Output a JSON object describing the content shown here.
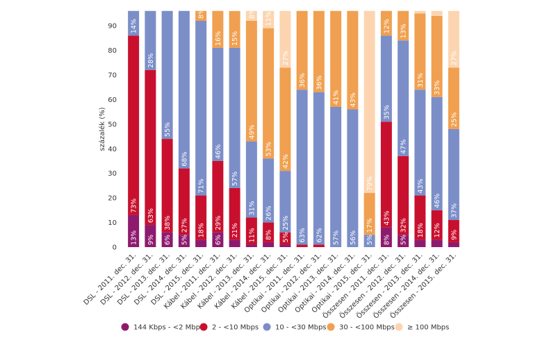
{
  "chart_data": {
    "type": "stacked_bar",
    "y_label": "százalék (%)",
    "categories": [
      "DSL - 2011. dec. 31.",
      "DSL - 2012. dec. 31.",
      "DSL - 2013. dec. 31.",
      "DSL - 2014. dec. 31.",
      "DSL - 2015. dec. 31.",
      "Kábel - 2011. dec. 31.",
      "Kábel - 2012. dec. 31.",
      "Kábel - 2013. dec. 31.",
      "Kábel - 2014. dec. 31.",
      "Kábel - 2015. dec. 31.",
      "Optikai - 2011. dec. 31.",
      "Optikai - 2012. dec. 31.",
      "Optikai - 2013. dec. 31.",
      "Optikai - 2014. dec. 31.",
      "Optikai - 2015. dec. 31.",
      "Összesen - 2011. dec. 31.",
      "Összesen - 2012. dec. 31.",
      "Összesen - 2013. dec. 31.",
      "Összesen - 2014. dec. 31.",
      "Összesen - 2015. dec. 31."
    ],
    "series": [
      {
        "name": "144 Kbps - <2 Mbps",
        "color": "#8e1a6e",
        "values": [
          13,
          9,
          6,
          5,
          3,
          6,
          3,
          1,
          2,
          1,
          0,
          0,
          0,
          0,
          0,
          8,
          5,
          3,
          3,
          2
        ],
        "value_labels": [
          "13%",
          "9%",
          "6%",
          "5%",
          null,
          "6%",
          null,
          null,
          null,
          null,
          null,
          null,
          null,
          null,
          null,
          "8%",
          "5%",
          null,
          null,
          null
        ]
      },
      {
        "name": "2 - <10 Mbps",
        "color": "#c8102e",
        "values": [
          73,
          63,
          38,
          27,
          18,
          29,
          21,
          11,
          8,
          5,
          1,
          1,
          0,
          0,
          0,
          43,
          32,
          18,
          12,
          9
        ],
        "value_labels": [
          "73%",
          "63%",
          "38%",
          "27%",
          "18%",
          "29%",
          "21%",
          "11%",
          "8%",
          "5%",
          null,
          null,
          null,
          null,
          null,
          "43%",
          "32%",
          "18%",
          "12%",
          "9%"
        ]
      },
      {
        "name": "10 - <30 Mbps",
        "color": "#7b8ec8",
        "values": [
          14,
          28,
          55,
          68,
          71,
          46,
          57,
          31,
          26,
          25,
          63,
          62,
          57,
          56,
          5,
          35,
          47,
          43,
          46,
          37
        ],
        "value_labels": [
          "14%",
          "28%",
          "55%",
          "68%",
          "71%",
          "46%",
          "57%",
          "31%",
          "26%",
          "25%",
          "63%",
          "62%",
          "57%",
          "56%",
          "5%",
          "35%",
          "47%",
          "43%",
          "46%",
          "37%"
        ]
      },
      {
        "name": "30 - <100 Mbps",
        "color": "#f0a050",
        "values": [
          0,
          0,
          0,
          0,
          8,
          16,
          15,
          49,
          53,
          42,
          36,
          36,
          41,
          43,
          17,
          12,
          13,
          31,
          33,
          25
        ],
        "value_labels": [
          null,
          null,
          null,
          null,
          "8%",
          "16%",
          "15%",
          "49%",
          "53%",
          "42%",
          "36%",
          "36%",
          "41%",
          "43%",
          "17%",
          "12%",
          "13%",
          "31%",
          "33%",
          "25%"
        ]
      },
      {
        "name": "≥ 100 Mbps",
        "color": "#fcd5b0",
        "values": [
          0,
          0,
          0,
          0,
          0,
          3,
          4,
          8,
          11,
          27,
          0,
          1,
          2,
          1,
          79,
          2,
          3,
          5,
          6,
          27
        ],
        "value_labels": [
          null,
          null,
          null,
          null,
          null,
          null,
          null,
          "8%",
          "11%",
          "27%",
          null,
          null,
          null,
          null,
          "79%",
          null,
          null,
          null,
          null,
          "27%"
        ]
      }
    ],
    "ylim": [
      0,
      96
    ],
    "yticks": [
      0,
      10,
      20,
      30,
      40,
      50,
      60,
      70,
      80,
      90
    ]
  }
}
